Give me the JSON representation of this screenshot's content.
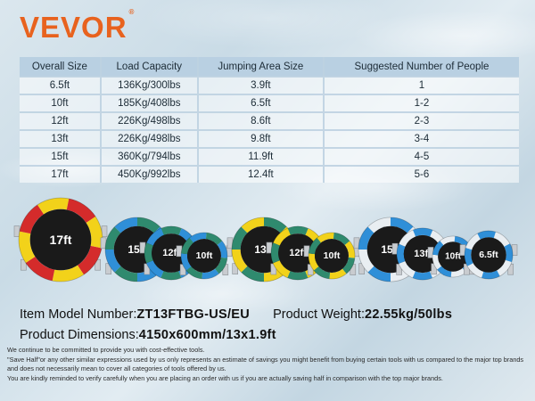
{
  "brand": {
    "name": "VEVOR",
    "mark": "®"
  },
  "table": {
    "headers": [
      "Overall Size",
      "Load Capacity",
      "Jumping Area Size",
      "Suggested Number of People"
    ],
    "rows": [
      [
        "6.5ft",
        "136Kg/300lbs",
        "3.9ft",
        "1"
      ],
      [
        "10ft",
        "185Kg/408lbs",
        "6.5ft",
        "1-2"
      ],
      [
        "12ft",
        "226Kg/498lbs",
        "8.6ft",
        "2-3"
      ],
      [
        "13ft",
        "226Kg/498lbs",
        "9.8ft",
        "3-4"
      ],
      [
        "15ft",
        "360Kg/794lbs",
        "11.9ft",
        "4-5"
      ],
      [
        "17ft",
        "450Kg/992lbs",
        "12.4ft",
        "5-6"
      ]
    ]
  },
  "trampolines": {
    "red_yellow": [
      "17ft"
    ],
    "green_blue": [
      "15ft",
      "12ft",
      "10ft"
    ],
    "green_yellow": [
      "13ft",
      "12ft",
      "10ft"
    ],
    "blue_white": [
      "15ft",
      "13ft",
      "10ft",
      "6.5ft"
    ],
    "colors": {
      "red": "#d42b2b",
      "yellow": "#f2d21a",
      "green": "#2f8a6e",
      "blue": "#2f8fd8",
      "white": "#e9eef2",
      "mat": "#1a1a1a"
    }
  },
  "info": {
    "model_label": "Item Model Number:",
    "model_value": "ZT13FTBG-US/EU",
    "weight_label": "Product Weight:",
    "weight_value": "22.55kg/50lbs",
    "dims_label": "Product Dimensions:",
    "dims_value": "4150x600mm/13x1.9ft"
  },
  "disclaimer": [
    "We continue to be committed to provide you with cost-effective tools.",
    "\"Save Half\"or any other similar expressions used by us only represents an estimate of savings you might benefit from buying certain tools with us compared to the major top brands and does not necessarily mean to cover all categories of tools offered by us.",
    "You are kindly reminded to verify carefully when you are placing an order with us if you are actually saving half in comparison with the top major brands."
  ]
}
